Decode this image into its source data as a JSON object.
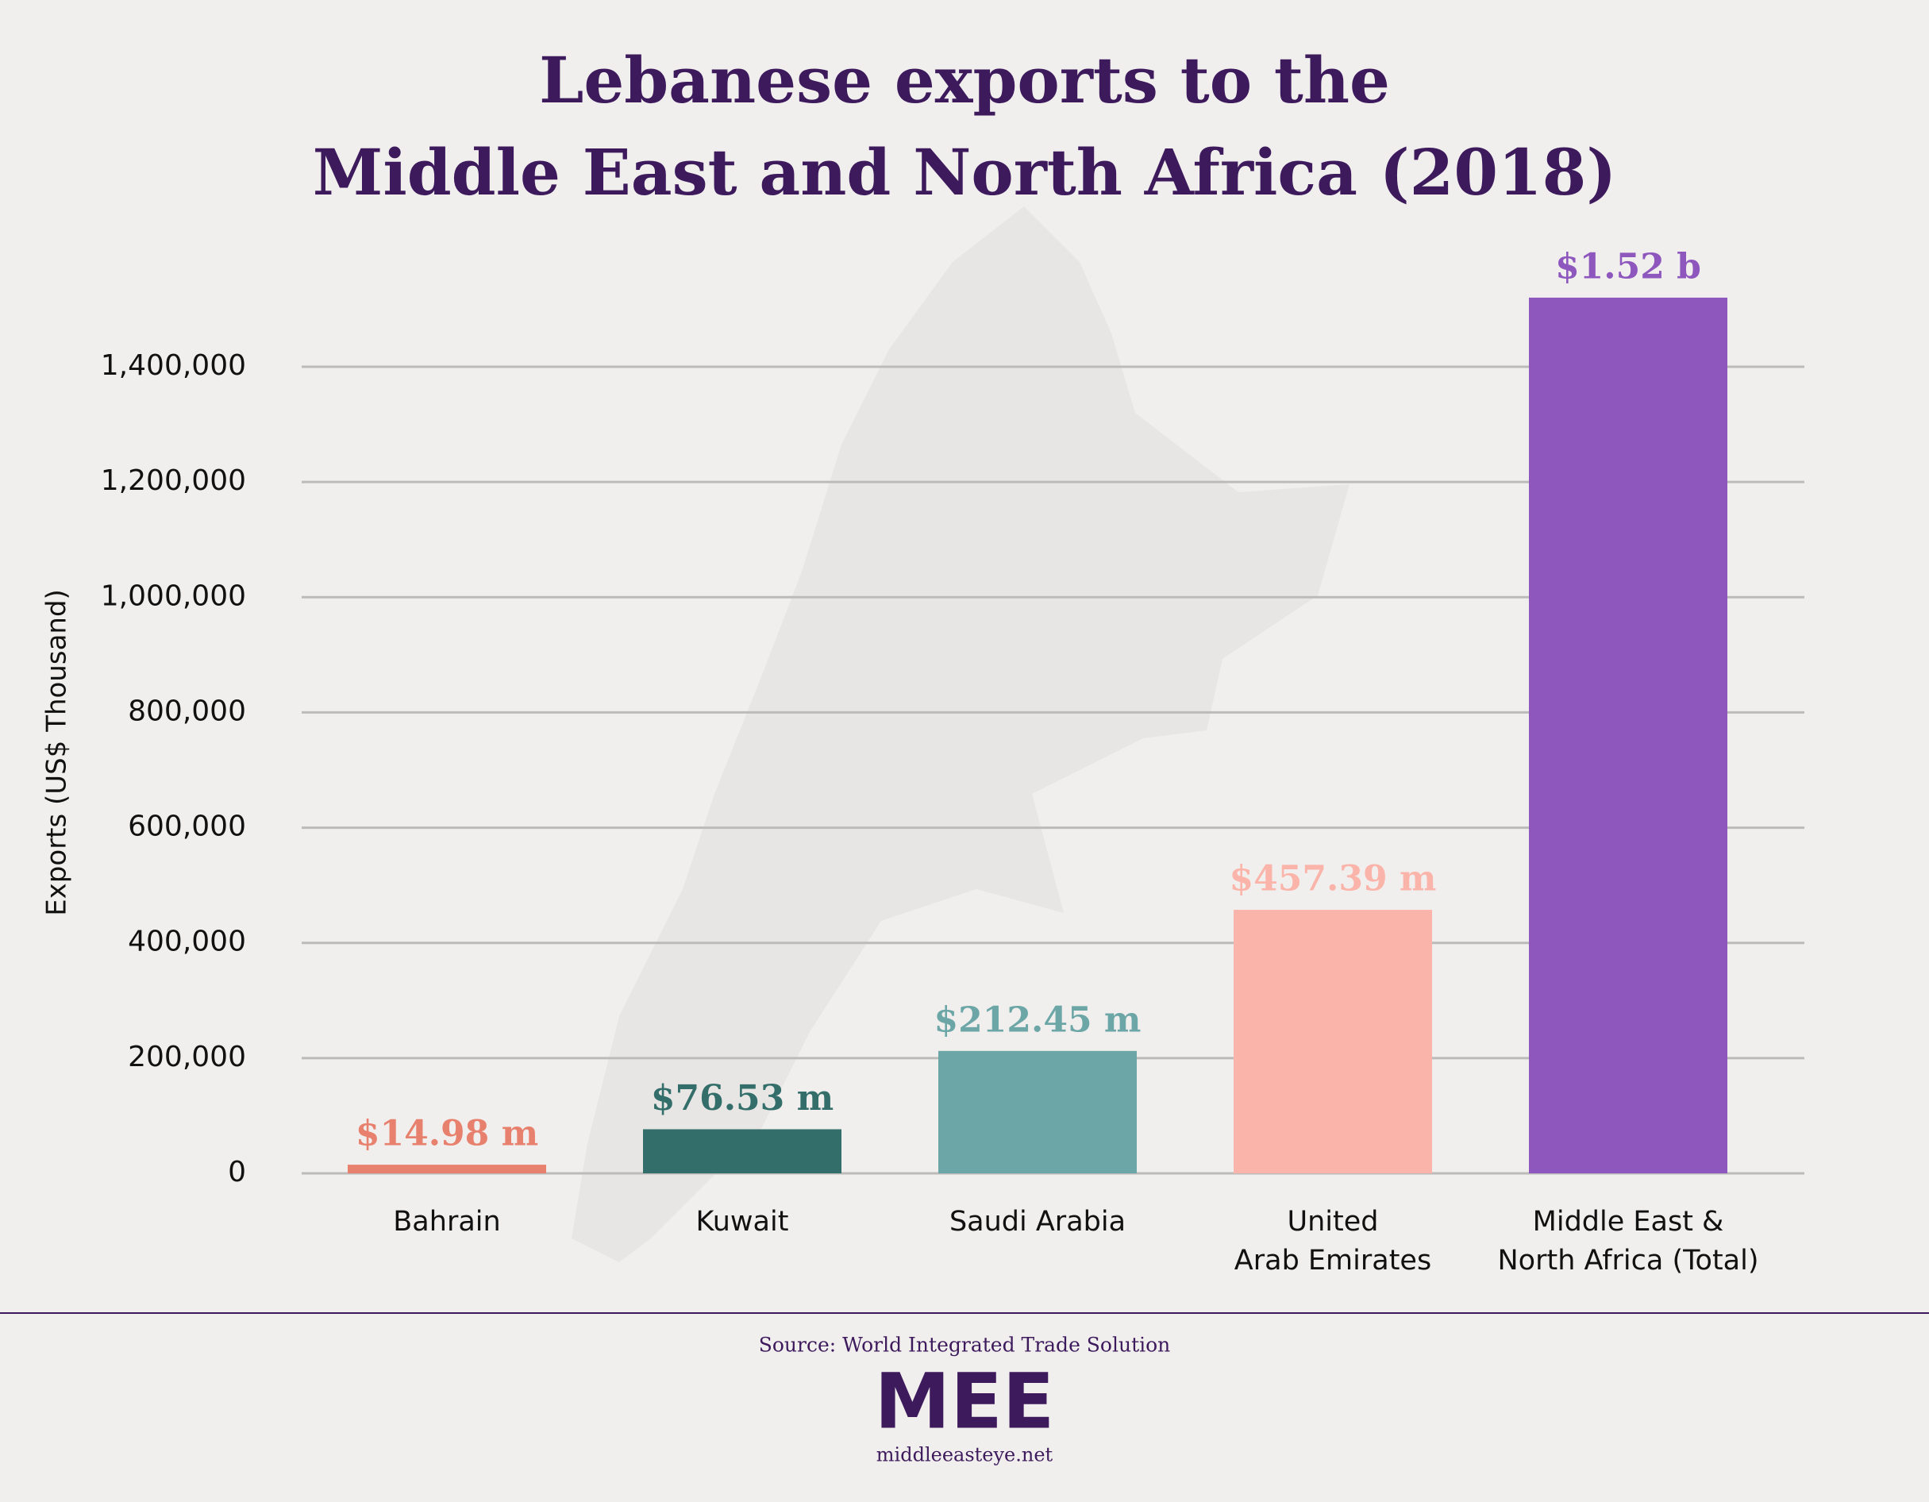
{
  "chart_data": {
    "type": "bar",
    "title": "Lebanese exports to the\nMiddle East and North Africa (2018)",
    "y_label": "Exports (US$ Thousand)",
    "categories": [
      "Bahrain",
      "Kuwait",
      "Saudi Arabia",
      "United\nArab Emirates",
      "Middle East &\nNorth Africa (Total)"
    ],
    "values": [
      14980,
      76530,
      212450,
      457390,
      1520000
    ],
    "value_labels": [
      "$14.98 m",
      "$76.53 m",
      "$212.45 m",
      "$457.39 m",
      "$1.52 b"
    ],
    "colors": [
      "#e8806e",
      "#336e6a",
      "#6ca6a6",
      "#fbb4a9",
      "#8e57bd"
    ],
    "ylim": [
      0,
      1600000
    ],
    "yticks": [
      0,
      {
        "value": 200000,
        "label": "200,000"
      },
      {
        "value": 400000,
        "label": "400,000"
      },
      {
        "value": 600000,
        "label": "600,000"
      },
      {
        "value": 800000,
        "label": "800,000"
      },
      {
        "value": 1000000,
        "label": "1,000,000"
      },
      {
        "value": 1200000,
        "label": "1,200,000"
      },
      {
        "value": 1400000,
        "label": "1,400,000"
      }
    ],
    "grid": true
  },
  "footer": {
    "source": "Source: World Integrated Trade Solution",
    "logo": "MEE",
    "website": "middleeasteye.net"
  }
}
